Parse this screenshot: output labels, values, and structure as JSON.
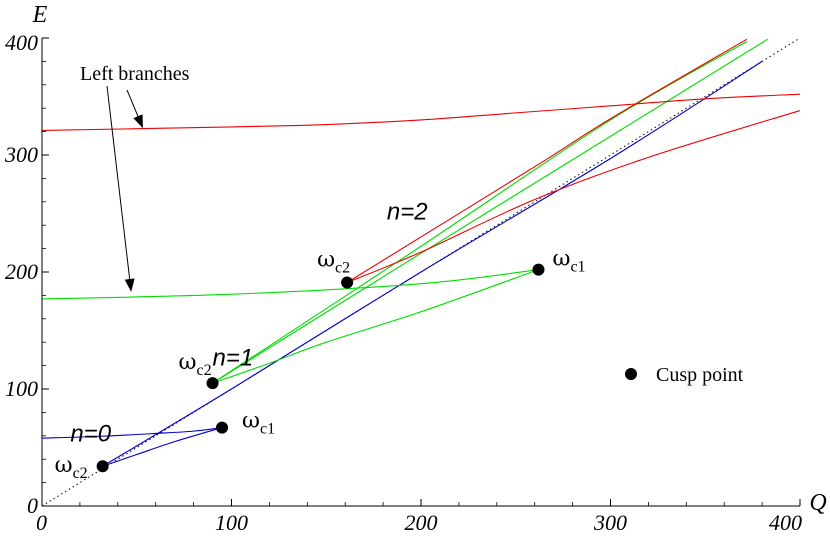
{
  "chart_data": {
    "type": "line",
    "xlabel": "Q",
    "ylabel": "E",
    "xlim": [
      0,
      400
    ],
    "ylim": [
      0,
      400
    ],
    "x_ticks": [
      0,
      100,
      200,
      300,
      400
    ],
    "y_ticks": [
      0,
      100,
      200,
      300,
      400
    ],
    "x_tick_labels": [
      "0",
      "100",
      "200",
      "300",
      "400"
    ],
    "y_tick_labels": [
      "0",
      "100",
      "200",
      "300",
      "400"
    ],
    "grid": false,
    "colors": {
      "n0": "#0000cc",
      "n1": "#00dd00",
      "n2": "#ee0000",
      "light_line": "#000000",
      "axes": "#000000"
    },
    "light_line": {
      "x": [
        0,
        400
      ],
      "y": [
        0,
        400
      ]
    },
    "series": [
      {
        "group": "n0",
        "points": [
          [
            0,
            58
          ],
          [
            30,
            59.5
          ],
          [
            60,
            62
          ],
          [
            80,
            64
          ],
          [
            95,
            67
          ]
        ]
      },
      {
        "group": "n0",
        "points": [
          [
            32,
            34
          ],
          [
            50,
            44
          ],
          [
            70,
            55
          ],
          [
            95,
            67
          ]
        ]
      },
      {
        "group": "n0",
        "points": [
          [
            32,
            34
          ],
          [
            100,
            100
          ],
          [
            200,
            200
          ],
          [
            300,
            297
          ],
          [
            380,
            380
          ]
        ]
      },
      {
        "group": "n1",
        "points": [
          [
            0,
            177
          ],
          [
            100,
            181
          ],
          [
            200,
            190
          ],
          [
            262,
            202
          ]
        ]
      },
      {
        "group": "n1",
        "points": [
          [
            90,
            105
          ],
          [
            120,
            122
          ],
          [
            150,
            140
          ],
          [
            200,
            166
          ],
          [
            262,
            202
          ]
        ]
      },
      {
        "group": "n1",
        "points": [
          [
            90,
            105
          ],
          [
            200,
            222
          ],
          [
            300,
            330
          ],
          [
            372,
            397
          ]
        ]
      },
      {
        "group": "n1",
        "points": [
          [
            90,
            105
          ],
          [
            200,
            216
          ],
          [
            300,
            316
          ],
          [
            383,
            399
          ]
        ]
      },
      {
        "group": "n2",
        "points": [
          [
            0,
            321
          ],
          [
            100,
            324
          ],
          [
            150,
            326
          ],
          [
            200,
            330
          ],
          [
            250,
            336
          ],
          [
            300,
            342
          ],
          [
            350,
            348
          ],
          [
            400,
            352
          ]
        ]
      },
      {
        "group": "n2",
        "points": [
          [
            161,
            191
          ],
          [
            200,
            217
          ],
          [
            260,
            262
          ],
          [
            320,
            298
          ],
          [
            400,
            338
          ]
        ]
      },
      {
        "group": "n2",
        "points": [
          [
            161,
            191
          ],
          [
            260,
            290
          ],
          [
            300,
            331
          ],
          [
            372,
            399
          ]
        ]
      }
    ],
    "cusp_points": [
      {
        "x": 32,
        "y": 34,
        "label": "ω",
        "sub": "c2"
      },
      {
        "x": 95,
        "y": 67,
        "label": "ω",
        "sub": "c1"
      },
      {
        "x": 90,
        "y": 105,
        "label": "ω",
        "sub": "c2"
      },
      {
        "x": 161,
        "y": 191,
        "label": "ω",
        "sub": "c2"
      },
      {
        "x": 262,
        "y": 202,
        "label": "ω",
        "sub": "c1"
      }
    ],
    "branch_labels": [
      {
        "text": "n=0",
        "x": 15,
        "y": 55
      },
      {
        "text": "n=1",
        "x": 90,
        "y": 120
      },
      {
        "text": "n=2",
        "x": 182,
        "y": 245
      }
    ],
    "annotation": {
      "text": "Left branches",
      "arrow_targets": [
        [
          47,
          177
        ],
        [
          52,
          322
        ]
      ]
    },
    "legend": {
      "label": "Cusp point",
      "placement": "right"
    }
  }
}
